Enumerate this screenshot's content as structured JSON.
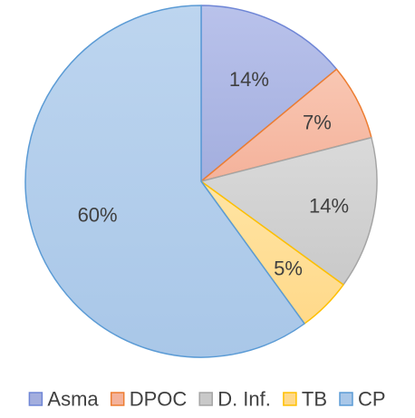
{
  "chart_data": {
    "type": "pie",
    "title": "",
    "categories": [
      "Asma",
      "DPOC",
      "D. Inf.",
      "TB",
      "CP"
    ],
    "values": [
      14,
      7,
      14,
      5,
      60
    ],
    "labels": [
      "14%",
      "7%",
      "14%",
      "5%",
      "60%"
    ],
    "legend_position": "bottom",
    "start_angle": "top",
    "direction": "clockwise",
    "colors": {
      "fills": [
        "#A3AEDE",
        "#F4B29B",
        "#C9C9C9",
        "#FFD98A",
        "#A9C7E8"
      ],
      "gradient_top": [
        "#B9C2EB",
        "#F9C7B3",
        "#DADADA",
        "#FFE4A3",
        "#BDD5EF"
      ],
      "strokes": [
        "#6F86D6",
        "#ED7D31",
        "#A5A5A5",
        "#FFC000",
        "#5B9BD5"
      ],
      "text": "#404040"
    }
  }
}
